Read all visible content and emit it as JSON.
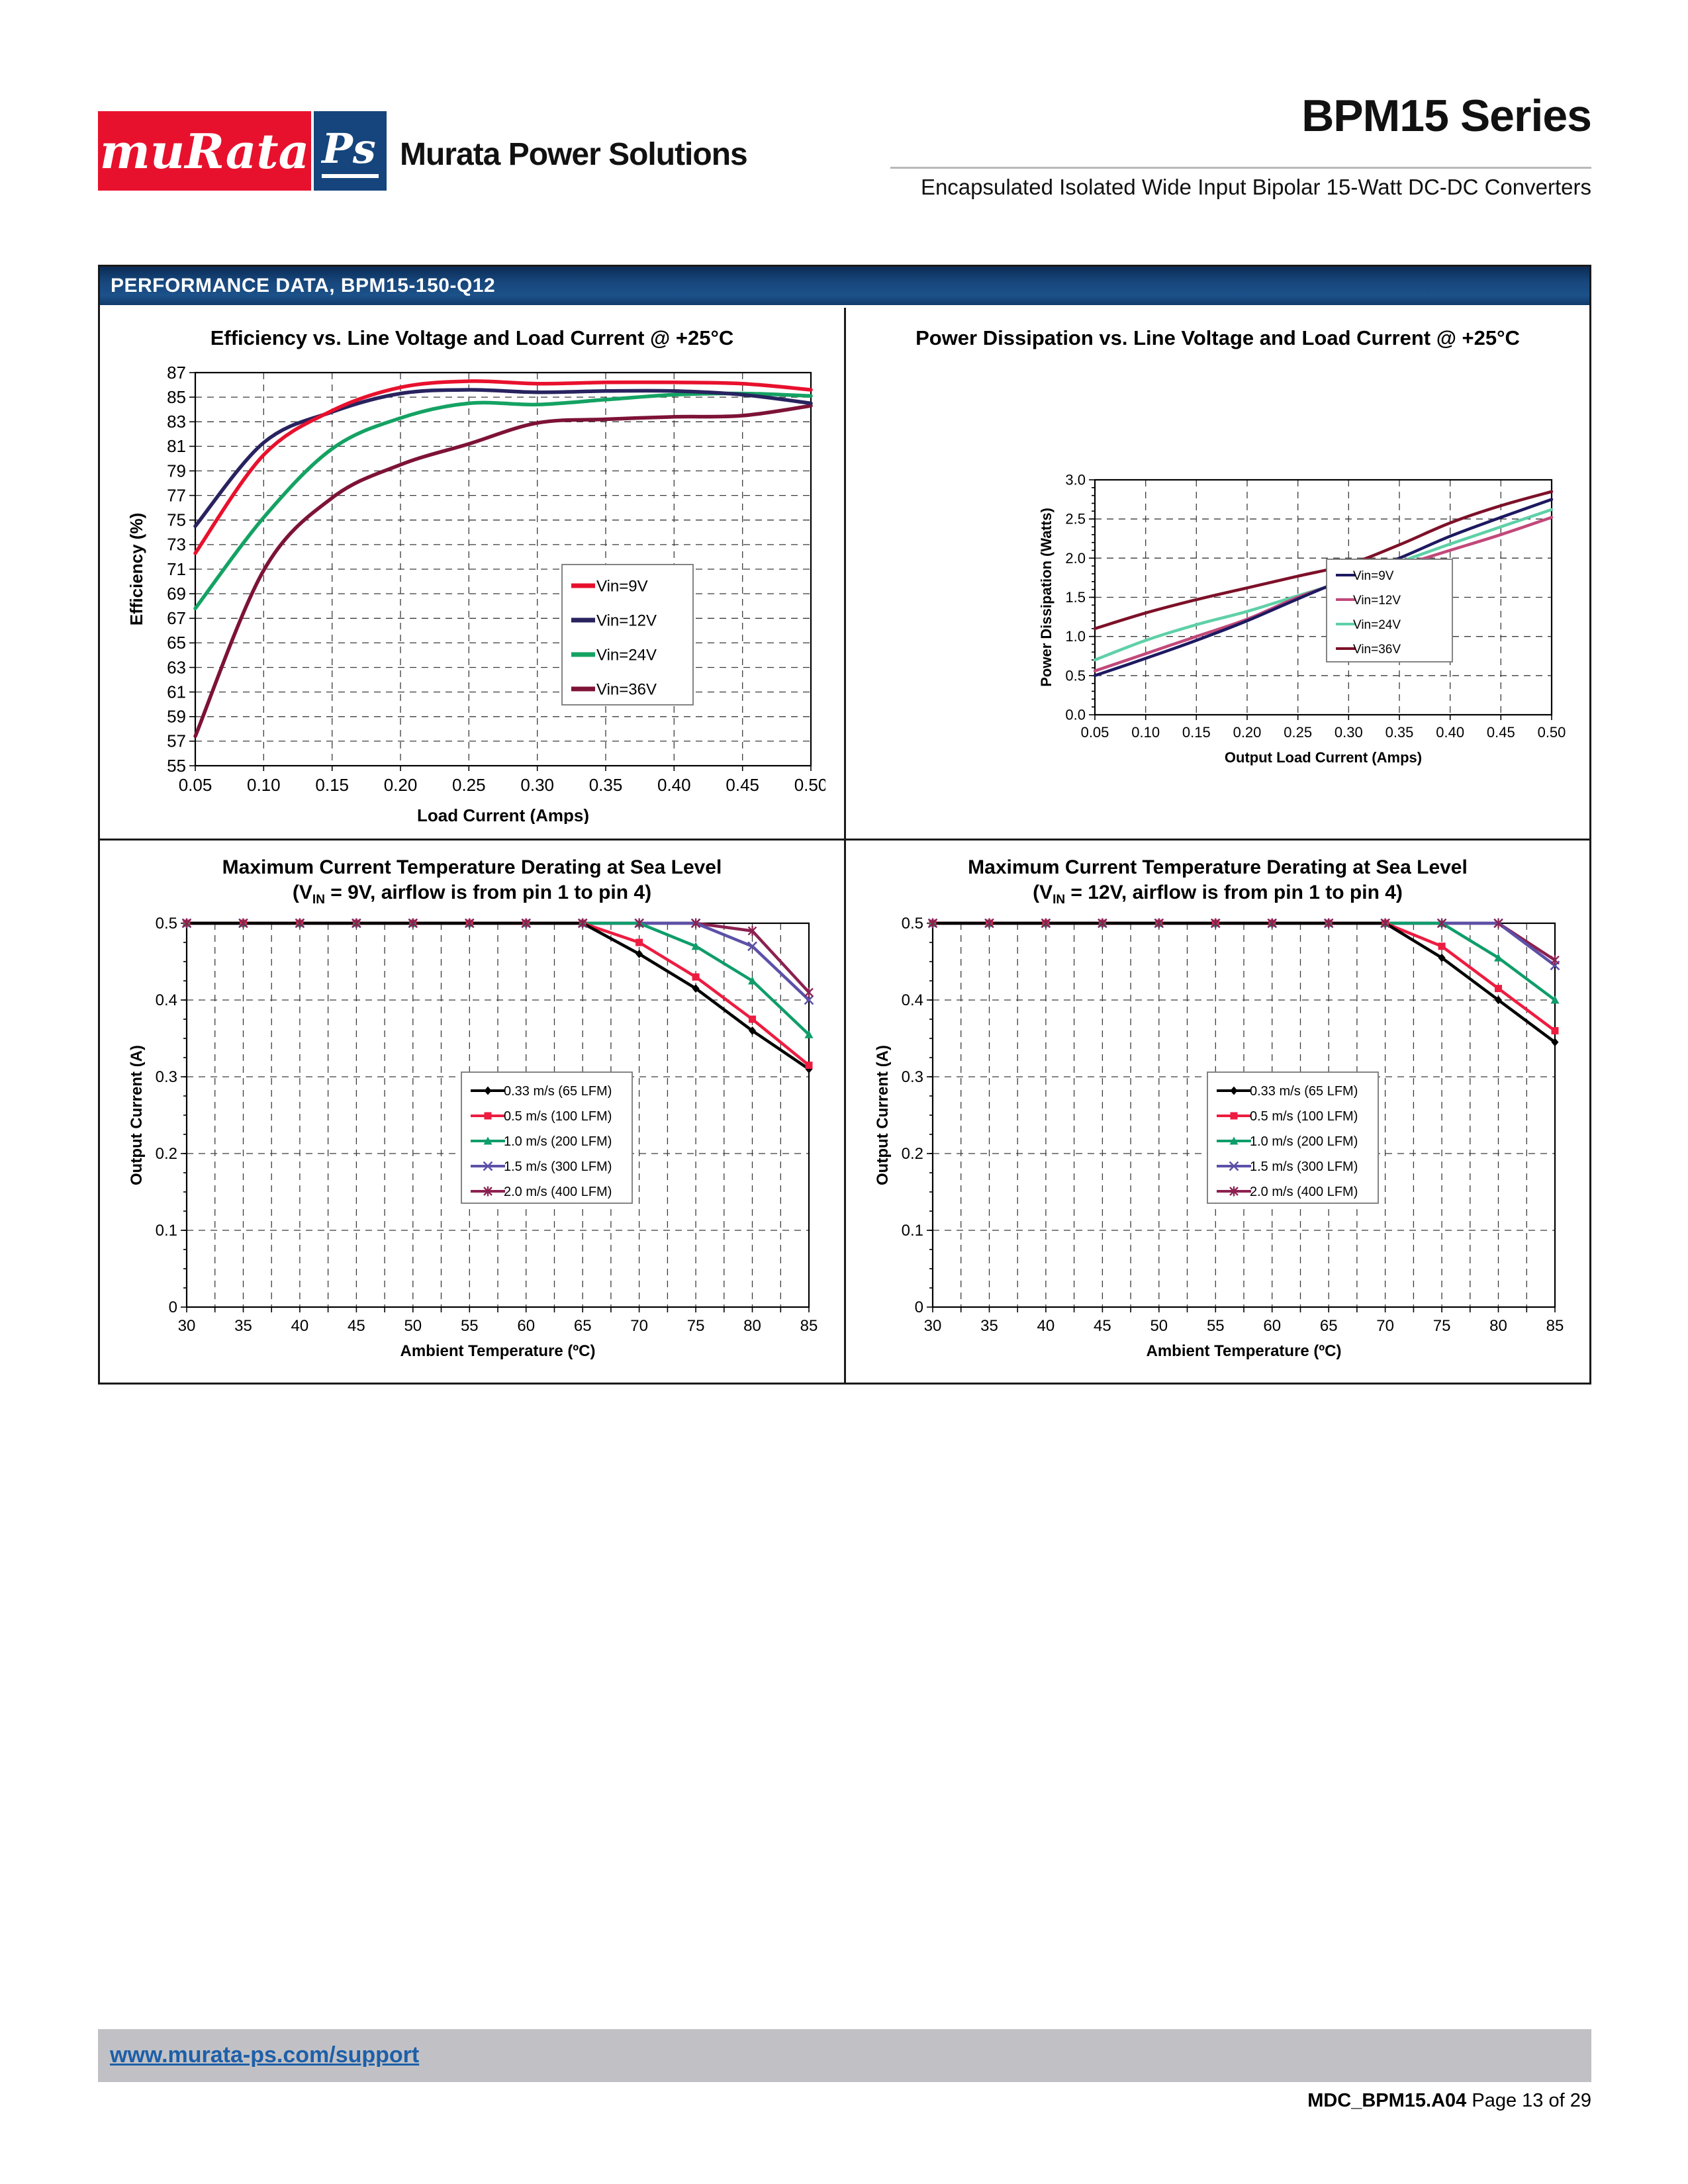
{
  "header": {
    "logo_murata": "muRata",
    "logo_ps": "Ps",
    "company": "Murata Power Solutions",
    "series_title": "BPM15 Series",
    "subtitle": "Encapsulated Isolated Wide Input Bipolar 15-Watt DC-DC Converters"
  },
  "section": {
    "title": "PERFORMANCE DATA, BPM15-150-Q12"
  },
  "footer": {
    "link": "www.murata-ps.com/support",
    "doc_id": "MDC_BPM15.A04",
    "page_info": "Page 13 of 29"
  },
  "colors": {
    "section_header_bg": "#17477d",
    "logo_red": "#e8112d",
    "logo_blue": "#15457c",
    "footer_bar_bg": "#c1c1c5",
    "link_color": "#1e5fa8"
  },
  "chart_data": [
    {
      "id": "efficiency",
      "type": "line",
      "title": "Efficiency vs. Line Voltage and Load Current @ +25°C",
      "xlabel": "Load Current (Amps)",
      "ylabel": "Efficiency (%)",
      "xlim": [
        0.05,
        0.5
      ],
      "xtick_step": 0.05,
      "x_decimals": 2,
      "ylim": [
        55,
        87
      ],
      "ytick_step": 2,
      "y_decimals": 0,
      "grid": "dashed",
      "legend_position": "middle-right",
      "smooth": true,
      "x": [
        0.05,
        0.1,
        0.15,
        0.2,
        0.25,
        0.3,
        0.35,
        0.4,
        0.45,
        0.5
      ],
      "series": [
        {
          "name": "Vin=9V",
          "color": "#e8112d",
          "values": [
            72.3,
            80.3,
            83.9,
            85.8,
            86.3,
            86.1,
            86.2,
            86.2,
            86.1,
            85.6
          ]
        },
        {
          "name": "Vin=12V",
          "color": "#28235f",
          "values": [
            74.5,
            81.3,
            83.8,
            85.3,
            85.6,
            85.4,
            85.5,
            85.5,
            85.2,
            84.5
          ]
        },
        {
          "name": "Vin=24V",
          "color": "#14a263",
          "values": [
            67.8,
            75.2,
            80.8,
            83.3,
            84.5,
            84.4,
            84.8,
            85.2,
            85.3,
            85.1
          ]
        },
        {
          "name": "Vin=36V",
          "color": "#7d1237",
          "values": [
            57.4,
            70.9,
            76.8,
            79.5,
            81.2,
            82.9,
            83.2,
            83.4,
            83.5,
            84.3
          ]
        }
      ]
    },
    {
      "id": "power-dissipation",
      "type": "line",
      "title": "Power Dissipation vs. Line Voltage and Load Current @ +25°C",
      "xlabel": "Output Load Current (Amps)",
      "ylabel": "Power Dissipation (Watts)",
      "xlim": [
        0.05,
        0.5
      ],
      "xtick_step": 0.05,
      "x_decimals": 2,
      "ylim": [
        0.0,
        3.0
      ],
      "ytick_step": 0.5,
      "y_decimals": 1,
      "grid": "dashed",
      "legend_position": "middle-right",
      "smooth": true,
      "x": [
        0.05,
        0.1,
        0.15,
        0.2,
        0.25,
        0.3,
        0.35,
        0.4,
        0.45,
        0.5
      ],
      "series": [
        {
          "name": "Vin=9V",
          "color": "#1d1960",
          "values": [
            0.5,
            0.72,
            0.95,
            1.2,
            1.48,
            1.75,
            2.0,
            2.28,
            2.52,
            2.75
          ]
        },
        {
          "name": "Vin=12V",
          "color": "#c2487a",
          "values": [
            0.56,
            0.78,
            1.0,
            1.22,
            1.5,
            1.72,
            1.9,
            2.1,
            2.3,
            2.52
          ]
        },
        {
          "name": "Vin=24V",
          "color": "#5fd0a8",
          "values": [
            0.7,
            0.95,
            1.15,
            1.32,
            1.52,
            1.72,
            1.95,
            2.18,
            2.4,
            2.62
          ]
        },
        {
          "name": "Vin=36V",
          "color": "#7d1028",
          "values": [
            1.1,
            1.3,
            1.47,
            1.62,
            1.77,
            1.92,
            2.17,
            2.45,
            2.67,
            2.85
          ]
        }
      ]
    },
    {
      "id": "derating-9v",
      "type": "line",
      "title": "Maximum Current Temperature Derating at Sea Level",
      "subtitle_parts": {
        "pre": "(V",
        "sub": "IN",
        "post": " = 9V, airflow is from pin 1 to pin 4)"
      },
      "xlabel": "Ambient Temperature (ºC)",
      "ylabel": "Output Current (A)",
      "xlim": [
        30,
        85
      ],
      "xtick_step": 5,
      "x_minor_step": 2.5,
      "x_decimals": 0,
      "ylim": [
        0,
        0.5
      ],
      "ytick_step": 0.1,
      "y_decimals": 1,
      "y_zero_plain": true,
      "grid": "dashed",
      "legend_position": "center",
      "smooth": false,
      "markers": true,
      "x": [
        30,
        35,
        40,
        45,
        50,
        55,
        60,
        65,
        70,
        75,
        80,
        85
      ],
      "series": [
        {
          "name": "0.33 m/s (65 LFM)",
          "color": "#000000",
          "marker": "diamond",
          "values": [
            0.5,
            0.5,
            0.5,
            0.5,
            0.5,
            0.5,
            0.5,
            0.5,
            0.46,
            0.415,
            0.36,
            0.31
          ]
        },
        {
          "name": "0.5 m/s (100 LFM)",
          "color": "#ed1c40",
          "marker": "square",
          "values": [
            0.5,
            0.5,
            0.5,
            0.5,
            0.5,
            0.5,
            0.5,
            0.5,
            0.475,
            0.43,
            0.375,
            0.315
          ]
        },
        {
          "name": "1.0 m/s (200 LFM)",
          "color": "#0f9d6a",
          "marker": "triangle",
          "values": [
            0.5,
            0.5,
            0.5,
            0.5,
            0.5,
            0.5,
            0.5,
            0.5,
            0.5,
            0.47,
            0.425,
            0.355
          ]
        },
        {
          "name": "1.5 m/s (300 LFM)",
          "color": "#5b51a8",
          "marker": "x",
          "values": [
            0.5,
            0.5,
            0.5,
            0.5,
            0.5,
            0.5,
            0.5,
            0.5,
            0.5,
            0.5,
            0.47,
            0.4
          ]
        },
        {
          "name": "2.0 m/s (400 LFM)",
          "color": "#8c2150",
          "marker": "star",
          "values": [
            0.5,
            0.5,
            0.5,
            0.5,
            0.5,
            0.5,
            0.5,
            0.5,
            0.5,
            0.5,
            0.49,
            0.41
          ]
        }
      ]
    },
    {
      "id": "derating-12v",
      "type": "line",
      "title": "Maximum Current Temperature Derating at Sea Level",
      "subtitle_parts": {
        "pre": "(V",
        "sub": "IN",
        "post": " = 12V, airflow is from pin 1 to pin 4)"
      },
      "xlabel": "Ambient Temperature (ºC)",
      "ylabel": "Output Current (A)",
      "xlim": [
        30,
        85
      ],
      "xtick_step": 5,
      "x_minor_step": 2.5,
      "x_decimals": 0,
      "ylim": [
        0,
        0.5
      ],
      "ytick_step": 0.1,
      "y_decimals": 1,
      "y_zero_plain": true,
      "grid": "dashed",
      "legend_position": "center",
      "smooth": false,
      "markers": true,
      "x": [
        30,
        35,
        40,
        45,
        50,
        55,
        60,
        65,
        70,
        75,
        80,
        85
      ],
      "series": [
        {
          "name": "0.33 m/s (65 LFM)",
          "color": "#000000",
          "marker": "diamond",
          "values": [
            0.5,
            0.5,
            0.5,
            0.5,
            0.5,
            0.5,
            0.5,
            0.5,
            0.5,
            0.455,
            0.4,
            0.345
          ]
        },
        {
          "name": "0.5 m/s (100 LFM)",
          "color": "#ed1c40",
          "marker": "square",
          "values": [
            0.5,
            0.5,
            0.5,
            0.5,
            0.5,
            0.5,
            0.5,
            0.5,
            0.5,
            0.47,
            0.415,
            0.36
          ]
        },
        {
          "name": "1.0 m/s (200 LFM)",
          "color": "#0f9d6a",
          "marker": "triangle",
          "values": [
            0.5,
            0.5,
            0.5,
            0.5,
            0.5,
            0.5,
            0.5,
            0.5,
            0.5,
            0.5,
            0.455,
            0.4
          ]
        },
        {
          "name": "1.5 m/s (300 LFM)",
          "color": "#5b51a8",
          "marker": "x",
          "values": [
            0.5,
            0.5,
            0.5,
            0.5,
            0.5,
            0.5,
            0.5,
            0.5,
            0.5,
            0.5,
            0.5,
            0.445
          ]
        },
        {
          "name": "2.0 m/s (400 LFM)",
          "color": "#8c2150",
          "marker": "star",
          "values": [
            0.5,
            0.5,
            0.5,
            0.5,
            0.5,
            0.5,
            0.5,
            0.5,
            0.5,
            0.5,
            0.5,
            0.452
          ]
        }
      ]
    }
  ]
}
